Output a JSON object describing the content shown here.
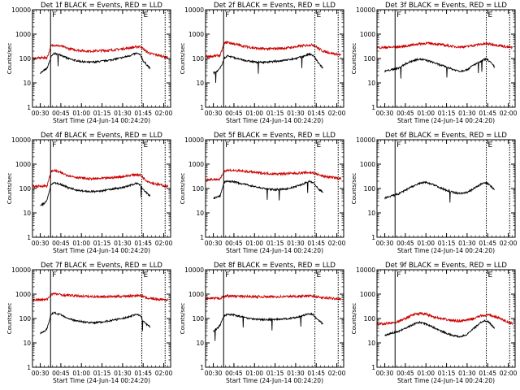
{
  "figure": {
    "background": "#ffffff"
  },
  "colors": {
    "events": "#000000",
    "lld": "#cc0000",
    "axes": "#000000"
  },
  "common": {
    "xlabel": "Start Time (24-Jun-14 00:24:20)",
    "ylabel": "Counts/sec",
    "x_tick_labels": [
      "00:30",
      "00:45",
      "01:00",
      "01:15",
      "01:30",
      "01:45",
      "02:00"
    ],
    "x_tick_minutes": [
      30,
      45,
      60,
      75,
      90,
      105,
      120
    ],
    "x_range_min": [
      24.33,
      125
    ],
    "y_tick_labels": [
      "1",
      "10",
      "100",
      "1000",
      "10000"
    ],
    "y_range": [
      1,
      10000
    ],
    "y_scale": "log",
    "marker_labels": {
      "start": "F",
      "end": "E"
    }
  },
  "chart_data": [
    {
      "type": "line",
      "title": "Det 1f BLACK = Events, RED = LLD",
      "series": [
        {
          "name": "Events",
          "color": "#000000",
          "minutes": [
            30,
            32,
            35,
            38,
            40,
            45,
            50,
            55,
            60,
            65,
            70,
            75,
            80,
            85,
            90,
            95,
            100,
            103,
            105,
            107,
            110
          ],
          "values": [
            25,
            30,
            40,
            120,
            160,
            140,
            100,
            85,
            75,
            70,
            72,
            78,
            85,
            95,
            110,
            130,
            165,
            140,
            80,
            60,
            40
          ]
        },
        {
          "name": "LLD",
          "color": "#cc0000",
          "minutes": [
            24.5,
            30,
            35,
            38,
            40,
            45,
            50,
            55,
            60,
            65,
            70,
            75,
            80,
            85,
            90,
            95,
            100,
            103,
            105,
            107,
            110,
            115,
            120,
            123
          ],
          "values": [
            100,
            105,
            110,
            330,
            360,
            320,
            260,
            230,
            210,
            200,
            205,
            210,
            215,
            230,
            250,
            270,
            300,
            310,
            250,
            200,
            160,
            140,
            120,
            110
          ]
        }
      ],
      "markers": {
        "start_min": 37.5,
        "end_min": 104,
        "end2_min": 121
      }
    },
    {
      "type": "line",
      "title": "Det 2f BLACK = Events, RED = LLD",
      "series": [
        {
          "name": "Events",
          "color": "#000000",
          "minutes": [
            30,
            33,
            35,
            38,
            40,
            45,
            50,
            55,
            60,
            65,
            70,
            75,
            80,
            85,
            90,
            95,
            100,
            103,
            105,
            107,
            110
          ],
          "values": [
            25,
            30,
            40,
            100,
            130,
            110,
            90,
            80,
            72,
            70,
            72,
            76,
            82,
            90,
            100,
            120,
            150,
            130,
            90,
            60,
            40
          ]
        },
        {
          "name": "LLD",
          "color": "#cc0000",
          "minutes": [
            24.5,
            30,
            35,
            38,
            40,
            45,
            50,
            55,
            60,
            65,
            70,
            75,
            80,
            85,
            90,
            95,
            100,
            103,
            105,
            107,
            110,
            115,
            120,
            123
          ],
          "values": [
            120,
            125,
            135,
            420,
            470,
            400,
            340,
            300,
            270,
            250,
            250,
            255,
            260,
            280,
            300,
            330,
            360,
            360,
            300,
            250,
            200,
            170,
            150,
            140
          ]
        }
      ],
      "markers": {
        "start_min": 37.5,
        "end_min": 104,
        "end2_min": 121
      }
    },
    {
      "type": "line",
      "title": "Det 3f BLACK = Events, RED = LLD",
      "series": [
        {
          "name": "Events",
          "color": "#000000",
          "minutes": [
            30,
            35,
            40,
            45,
            50,
            55,
            60,
            65,
            70,
            75,
            80,
            85,
            90,
            95,
            100,
            103,
            105,
            107,
            110
          ],
          "values": [
            30,
            35,
            40,
            60,
            80,
            95,
            85,
            70,
            55,
            45,
            35,
            30,
            35,
            55,
            75,
            95,
            90,
            70,
            45
          ]
        },
        {
          "name": "LLD",
          "color": "#cc0000",
          "minutes": [
            24.5,
            30,
            35,
            40,
            45,
            50,
            55,
            60,
            65,
            70,
            75,
            80,
            85,
            90,
            95,
            100,
            105,
            110,
            115,
            120,
            123
          ],
          "values": [
            280,
            285,
            290,
            300,
            320,
            360,
            400,
            420,
            410,
            380,
            340,
            310,
            300,
            310,
            350,
            390,
            400,
            370,
            330,
            290,
            280
          ]
        }
      ],
      "markers": {
        "start_min": 37.5,
        "end_min": 104,
        "end2_min": 121
      }
    },
    {
      "type": "line",
      "title": "Det 4f BLACK = Events, RED = LLD",
      "series": [
        {
          "name": "Events",
          "color": "#000000",
          "minutes": [
            30,
            33,
            35,
            38,
            40,
            45,
            50,
            55,
            60,
            65,
            70,
            75,
            80,
            85,
            90,
            95,
            100,
            103,
            105,
            107,
            110
          ],
          "values": [
            20,
            25,
            35,
            150,
            170,
            150,
            110,
            90,
            80,
            75,
            75,
            80,
            90,
            100,
            110,
            130,
            165,
            140,
            90,
            70,
            50
          ]
        },
        {
          "name": "LLD",
          "color": "#cc0000",
          "minutes": [
            24.5,
            30,
            35,
            38,
            40,
            45,
            50,
            55,
            60,
            65,
            70,
            75,
            80,
            85,
            90,
            95,
            100,
            103,
            105,
            107,
            110,
            115,
            120,
            123
          ],
          "values": [
            120,
            125,
            130,
            500,
            560,
            440,
            350,
            300,
            270,
            250,
            250,
            260,
            270,
            290,
            310,
            340,
            380,
            350,
            280,
            220,
            180,
            150,
            130,
            120
          ]
        }
      ],
      "markers": {
        "start_min": 37.5,
        "end_min": 104,
        "end2_min": 121
      }
    },
    {
      "type": "line",
      "title": "Det 5f BLACK = Events, RED = LLD",
      "series": [
        {
          "name": "Events",
          "color": "#000000",
          "minutes": [
            30,
            33,
            35,
            38,
            40,
            45,
            50,
            55,
            60,
            65,
            70,
            75,
            80,
            85,
            90,
            95,
            100,
            103,
            105,
            107,
            110
          ],
          "values": [
            40,
            45,
            50,
            180,
            200,
            190,
            160,
            140,
            120,
            105,
            95,
            90,
            92,
            100,
            120,
            150,
            200,
            170,
            120,
            90,
            70
          ]
        },
        {
          "name": "LLD",
          "color": "#cc0000",
          "minutes": [
            24.5,
            30,
            35,
            38,
            40,
            45,
            50,
            55,
            60,
            65,
            70,
            75,
            80,
            85,
            90,
            95,
            100,
            103,
            105,
            107,
            110,
            115,
            120,
            123
          ],
          "values": [
            230,
            235,
            240,
            530,
            560,
            550,
            520,
            490,
            460,
            430,
            410,
            400,
            400,
            410,
            420,
            440,
            450,
            440,
            400,
            360,
            320,
            290,
            270,
            260
          ]
        }
      ],
      "markers": {
        "start_min": 37.5,
        "end_min": 104,
        "end2_min": 121
      }
    },
    {
      "type": "line",
      "title": "Det 6f BLACK = Events, RED = LLD",
      "series": [
        {
          "name": "Events",
          "color": "#000000",
          "minutes": [
            30,
            35,
            40,
            45,
            50,
            55,
            60,
            65,
            70,
            75,
            80,
            85,
            90,
            95,
            100,
            103,
            105,
            107,
            110
          ],
          "values": [
            40,
            50,
            60,
            85,
            120,
            160,
            180,
            150,
            110,
            85,
            70,
            62,
            70,
            100,
            150,
            170,
            160,
            130,
            90
          ]
        }
      ],
      "markers": {
        "start_min": 37.5,
        "end_min": 104,
        "end2_min": 121
      }
    },
    {
      "type": "line",
      "title": "Det 7f BLACK = Events, RED = LLD",
      "series": [
        {
          "name": "Events",
          "color": "#000000",
          "minutes": [
            30,
            33,
            35,
            38,
            40,
            45,
            50,
            55,
            60,
            65,
            70,
            75,
            80,
            85,
            90,
            95,
            100,
            103,
            105,
            107,
            110
          ],
          "values": [
            25,
            30,
            40,
            150,
            170,
            140,
            100,
            85,
            75,
            68,
            68,
            72,
            80,
            90,
            100,
            120,
            150,
            130,
            80,
            60,
            45
          ]
        },
        {
          "name": "LLD",
          "color": "#cc0000",
          "minutes": [
            24.5,
            30,
            35,
            38,
            40,
            45,
            50,
            55,
            60,
            65,
            70,
            75,
            80,
            85,
            90,
            95,
            100,
            103,
            105,
            107,
            110,
            115,
            120,
            123
          ],
          "values": [
            580,
            590,
            600,
            1000,
            1050,
            950,
            900,
            860,
            830,
            800,
            790,
            790,
            790,
            800,
            820,
            850,
            880,
            870,
            800,
            720,
            660,
            620,
            600,
            580
          ]
        }
      ],
      "markers": {
        "start_min": 37.5,
        "end_min": 104,
        "end2_min": 121
      }
    },
    {
      "type": "line",
      "title": "Det 8f BLACK = Events, RED = LLD",
      "series": [
        {
          "name": "Events",
          "color": "#000000",
          "minutes": [
            30,
            33,
            35,
            38,
            40,
            45,
            50,
            55,
            60,
            65,
            70,
            75,
            80,
            85,
            90,
            95,
            100,
            103,
            105,
            107,
            110
          ],
          "values": [
            30,
            40,
            55,
            130,
            150,
            140,
            120,
            105,
            95,
            90,
            90,
            92,
            95,
            100,
            110,
            130,
            160,
            140,
            100,
            80,
            60
          ]
        },
        {
          "name": "LLD",
          "color": "#cc0000",
          "minutes": [
            24.5,
            30,
            35,
            38,
            40,
            45,
            50,
            55,
            60,
            65,
            70,
            75,
            80,
            85,
            90,
            95,
            100,
            103,
            105,
            107,
            110,
            115,
            120,
            123
          ],
          "values": [
            650,
            660,
            680,
            800,
            850,
            830,
            810,
            800,
            790,
            780,
            780,
            780,
            790,
            800,
            810,
            820,
            840,
            830,
            790,
            740,
            700,
            680,
            660,
            650
          ]
        }
      ],
      "markers": {
        "start_min": 37.5,
        "end_min": 104,
        "end2_min": 121
      }
    },
    {
      "type": "line",
      "title": "Det 9f BLACK = Events, RED = LLD",
      "series": [
        {
          "name": "Events",
          "color": "#000000",
          "minutes": [
            30,
            35,
            40,
            45,
            50,
            55,
            60,
            65,
            70,
            75,
            80,
            85,
            90,
            95,
            100,
            103,
            105,
            107,
            110
          ],
          "values": [
            20,
            25,
            30,
            40,
            55,
            70,
            60,
            45,
            32,
            25,
            20,
            18,
            22,
            40,
            70,
            80,
            75,
            60,
            40
          ]
        },
        {
          "name": "LLD",
          "color": "#cc0000",
          "minutes": [
            24.5,
            30,
            35,
            40,
            45,
            50,
            55,
            60,
            65,
            70,
            75,
            80,
            85,
            90,
            95,
            100,
            105,
            110,
            115,
            120,
            123
          ],
          "values": [
            60,
            62,
            65,
            75,
            100,
            140,
            160,
            150,
            120,
            100,
            90,
            82,
            80,
            85,
            100,
            130,
            140,
            120,
            95,
            70,
            62
          ]
        }
      ],
      "markers": {
        "start_min": 37.5,
        "end_min": 104,
        "end2_min": 121
      }
    }
  ]
}
